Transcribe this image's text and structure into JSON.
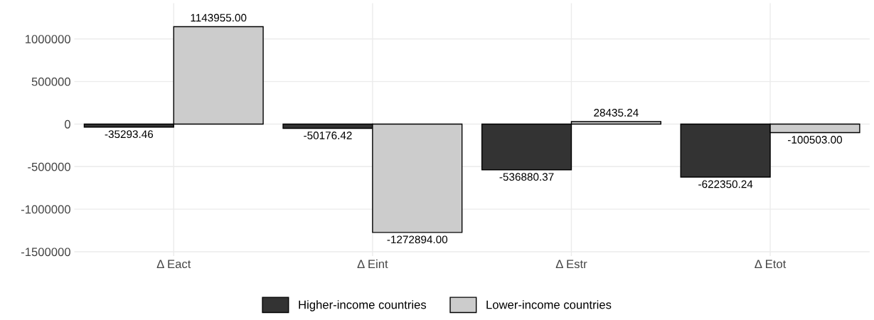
{
  "chart_data": {
    "type": "bar",
    "categories": [
      "Δ Eact",
      "Δ Eint",
      "Δ Estr",
      "Δ Etot"
    ],
    "series": [
      {
        "name": "Higher-income countries",
        "color": "#333333",
        "values": [
          -35293.46,
          -50176.42,
          -536880.37,
          -622350.24
        ],
        "value_labels": [
          "-35293.46",
          "-50176.42",
          "-536880.37",
          "-622350.24"
        ]
      },
      {
        "name": "Lower-income countries",
        "color": "#cccccc",
        "values": [
          1143955.0,
          -1272894.0,
          28435.24,
          -100503.0
        ],
        "value_labels": [
          "1143955.00",
          "-1272894.00",
          "28435.24",
          "-100503.00"
        ]
      }
    ],
    "ylim": [
      -1550000,
      1420000
    ],
    "yticks": [
      -1500000,
      -1000000,
      -500000,
      0,
      500000,
      1000000
    ],
    "grid": true,
    "legend": "bottom"
  }
}
